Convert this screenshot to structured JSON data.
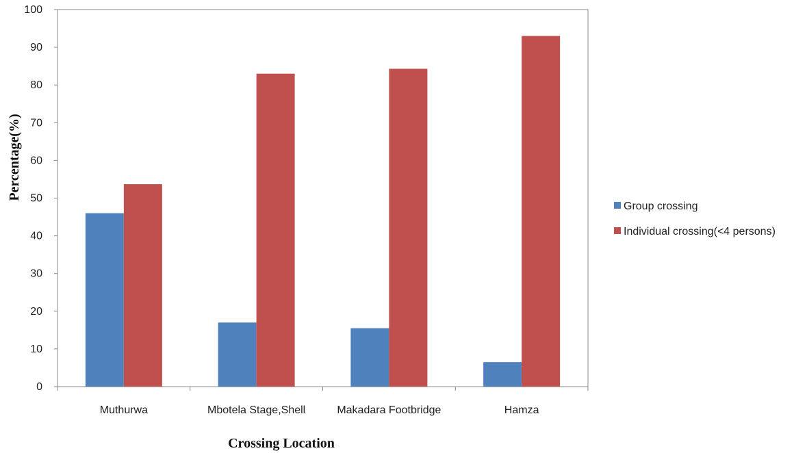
{
  "chart_data": {
    "type": "bar",
    "title": "",
    "xlabel": "Crossing Location",
    "ylabel": "Percentage(%)",
    "ylim": [
      0,
      100
    ],
    "yticks": [
      0,
      10,
      20,
      30,
      40,
      50,
      60,
      70,
      80,
      90,
      100
    ],
    "categories": [
      "Muthurwa",
      "Mbotela Stage,Shell",
      "Makadara Footbridge",
      "Hamza"
    ],
    "series": [
      {
        "name": "Group crossing",
        "color": "#4F81BD",
        "values": [
          46,
          17,
          15.5,
          6.5
        ]
      },
      {
        "name": "Individual crossing(<4 persons)",
        "color": "#C0504D",
        "values": [
          53.7,
          83,
          84.3,
          93
        ]
      }
    ],
    "grid": false,
    "legend_position": "right"
  }
}
